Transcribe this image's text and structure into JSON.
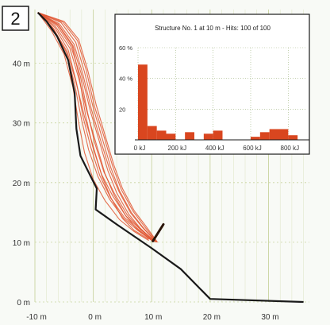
{
  "panel_label": "2",
  "colors": {
    "trajectory": "#e0532f",
    "histogram": "#d9461f",
    "slope": "#1a1a1a",
    "barrier": "#2a1408",
    "grid": "#dde4c2"
  },
  "chart_data": [
    {
      "type": "line",
      "title": "",
      "xlabel": "",
      "ylabel": "",
      "xlim": [
        -10,
        37
      ],
      "ylim": [
        0,
        49
      ],
      "x_ticks": [
        -10,
        0,
        10,
        20,
        30
      ],
      "x_tick_labels": [
        "-10 m",
        "0 m",
        "10 m",
        "20 m",
        "30 m"
      ],
      "y_ticks": [
        0,
        10,
        20,
        30,
        40
      ],
      "y_tick_labels": [
        "0 m",
        "10 m",
        "20 m",
        "30 m",
        "40 m"
      ],
      "grid": true,
      "series": [
        {
          "role": "slope-profile",
          "x": [
            -9.5,
            -8,
            -6.2,
            -4.3,
            -3.2,
            -2.9,
            -2.2,
            -1.2,
            0.6,
            0.4,
            4,
            10,
            15,
            20,
            36
          ],
          "y": [
            48.5,
            47,
            44.5,
            40.5,
            35,
            29,
            24.5,
            22.5,
            19,
            15.5,
            13,
            9,
            5.5,
            0.5,
            0
          ]
        },
        {
          "role": "barrier",
          "x": [
            10.2,
            12
          ],
          "y": [
            10.2,
            13
          ]
        },
        {
          "role": "trajectory-envelope",
          "trajectories": [
            {
              "x": [
                -9.5,
                -7,
                -4.5,
                -3,
                -1.5,
                0,
                1.5,
                3,
                5,
                7,
                9.5
              ],
              "y": [
                48.5,
                46,
                42,
                37,
                31,
                26,
                21,
                17.5,
                14,
                12,
                10.5
              ]
            },
            {
              "x": [
                -9.5,
                -6.5,
                -4,
                -2.5,
                -1,
                0.5,
                2,
                3.5,
                5.5,
                7.5,
                10
              ],
              "y": [
                48.5,
                46.2,
                42.5,
                37.5,
                31.5,
                26.5,
                21.5,
                18,
                14.5,
                12.2,
                10.3
              ]
            },
            {
              "x": [
                -9.5,
                -6,
                -3.5,
                -2,
                -0.5,
                1,
                2.5,
                4,
                6,
                8,
                10.5
              ],
              "y": [
                48.5,
                46.5,
                43,
                38,
                32,
                27,
                22,
                18.3,
                14.8,
                12.4,
                10.1
              ]
            },
            {
              "x": [
                -9.5,
                -5.5,
                -3,
                -1.5,
                0,
                1.5,
                3,
                4.5,
                6.5,
                8.5,
                10.8
              ],
              "y": [
                48.5,
                46.8,
                43.5,
                38.5,
                32.5,
                27.5,
                22.5,
                18.6,
                15,
                12.5,
                10
              ]
            },
            {
              "x": [
                -9.5,
                -5,
                -2.5,
                -1,
                0.5,
                2,
                3.5,
                5,
                7,
                9,
                11
              ],
              "y": [
                48.5,
                47,
                44,
                39,
                33,
                28,
                23,
                19,
                15.3,
                12.7,
                10
              ]
            },
            {
              "x": [
                -9.5,
                -7.2,
                -5,
                -3.5,
                -2.5,
                -1.5,
                0,
                2,
                4.5,
                7,
                9.5
              ],
              "y": [
                48.5,
                45.5,
                41.5,
                36,
                30,
                25,
                20.5,
                17,
                13.8,
                11.8,
                10.3
              ]
            },
            {
              "x": [
                -9.5,
                -6.8,
                -4.6,
                -3.2,
                -2,
                -0.8,
                0.8,
                2.8,
                5.2,
                7.6,
                10.2
              ],
              "y": [
                48.5,
                45.8,
                41.8,
                36.5,
                30.5,
                25.5,
                21,
                17.2,
                14,
                12,
                10.2
              ]
            },
            {
              "x": [
                -9.5,
                -6.2,
                -3.8,
                -2.2,
                -1,
                0.2,
                1.8,
                3.6,
                5.8,
                8,
                10.6
              ],
              "y": [
                48.5,
                46.3,
                42.8,
                37.8,
                31.8,
                26.8,
                21.8,
                18.2,
                14.6,
                12.3,
                10.1
              ]
            },
            {
              "x": [
                -9.5,
                -5.8,
                -3.3,
                -1.8,
                -0.3,
                1.2,
                2.8,
                4.4,
                6.4,
                8.4,
                10.7
              ],
              "y": [
                48.5,
                46.6,
                43.2,
                38.2,
                32.2,
                27.2,
                22.2,
                18.5,
                14.9,
                12.5,
                10.1
              ]
            },
            {
              "x": [
                -9.5,
                -5.2,
                -2.7,
                -1.2,
                0.2,
                1.8,
                3.3,
                4.8,
                6.8,
                8.8,
                10.9
              ],
              "y": [
                48.5,
                46.9,
                43.8,
                38.8,
                32.8,
                27.8,
                22.8,
                18.8,
                15.2,
                12.6,
                10
              ]
            },
            {
              "x": [
                -9.5,
                -6.6,
                -4.3,
                -2.9,
                -1.7,
                -0.4,
                1.1,
                3,
                5.3,
                7.8,
                10.3
              ],
              "y": [
                48.5,
                46,
                42.2,
                36.8,
                30.8,
                25.8,
                21.2,
                17.4,
                14.2,
                12.1,
                10.2
              ]
            },
            {
              "x": [
                -9.5,
                -6,
                -3.6,
                -2.4,
                -1.3,
                -0.1,
                1.4,
                3.3,
                5.6,
                8,
                10.4
              ],
              "y": [
                48.5,
                46.4,
                42.9,
                37.7,
                31.2,
                26,
                21.4,
                17.8,
                14.4,
                12.2,
                10.2
              ]
            }
          ]
        }
      ]
    },
    {
      "type": "bar",
      "title": "Structure No.  1  at 10 m  - Hits:  100  of  100",
      "xlim": [
        0,
        900
      ],
      "ylim": [
        0,
        60
      ],
      "x_ticks": [
        0,
        200,
        400,
        600,
        800
      ],
      "x_tick_labels": [
        "0 kJ",
        "200 kJ",
        "400 kJ",
        "600 kJ",
        "800 kJ"
      ],
      "y_ticks": [
        20,
        40,
        60
      ],
      "y_tick_labels": [
        "20",
        "40 %",
        "60 %"
      ],
      "grid": true,
      "bin_width": 50,
      "categories": [
        "0-50",
        "50-100",
        "100-150",
        "150-200",
        "200-250",
        "250-300",
        "300-350",
        "350-400",
        "400-450",
        "450-500",
        "500-550",
        "550-600",
        "600-650",
        "650-700",
        "700-750",
        "750-800",
        "800-850",
        "850-900"
      ],
      "values": [
        49,
        9,
        6,
        4,
        0,
        5,
        0,
        4,
        6,
        0,
        0,
        0,
        2,
        5,
        7,
        7,
        3,
        0
      ]
    }
  ]
}
